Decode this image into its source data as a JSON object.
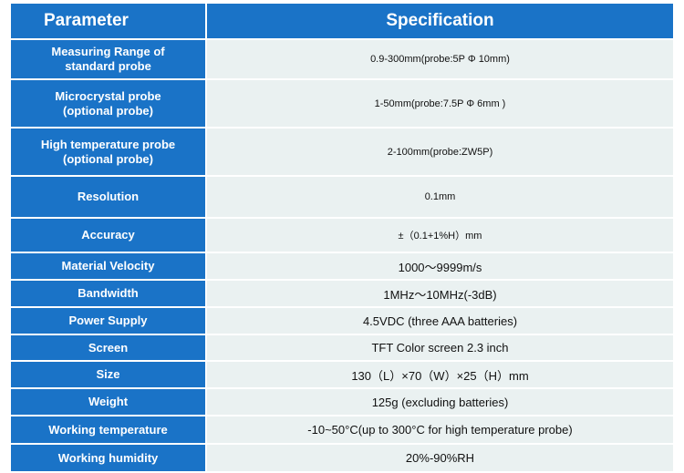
{
  "header": {
    "parameter": "Parameter",
    "specification": "Specification"
  },
  "rows": [
    {
      "param": [
        "Measuring Range of",
        "standard probe"
      ],
      "spec": "0.9-300mm(probe:5P Φ 10mm)"
    },
    {
      "param": [
        "Microcrystal probe",
        "(optional probe)"
      ],
      "spec": "1-50mm(probe:7.5P Φ 6mm )"
    },
    {
      "param": [
        "High temperature probe",
        "(optional probe)"
      ],
      "spec": "2-100mm(probe:ZW5P)"
    },
    {
      "param": [
        "Resolution"
      ],
      "spec": "0.1mm"
    },
    {
      "param": [
        "Accuracy"
      ],
      "spec": "±（0.1+1%H）mm"
    },
    {
      "param": [
        "Material Velocity"
      ],
      "spec": "1000～9999m/s"
    },
    {
      "param": [
        "Bandwidth"
      ],
      "spec": "1MHz～10MHz(-3dB)"
    },
    {
      "param": [
        "Power Supply"
      ],
      "spec": "4.5VDC (three AAA batteries)"
    },
    {
      "param": [
        "Screen"
      ],
      "spec": "TFT Color screen 2.3 inch"
    },
    {
      "param": [
        "Size"
      ],
      "spec": "130（L）×70（W）×25（H）mm"
    },
    {
      "param": [
        "Weight"
      ],
      "spec": "125g (excluding batteries)"
    },
    {
      "param": [
        "Working temperature"
      ],
      "spec": "-10~50°C(up to 300°C for high temperature probe)"
    },
    {
      "param": [
        "Working humidity"
      ],
      "spec": "20%-90%RH"
    }
  ]
}
